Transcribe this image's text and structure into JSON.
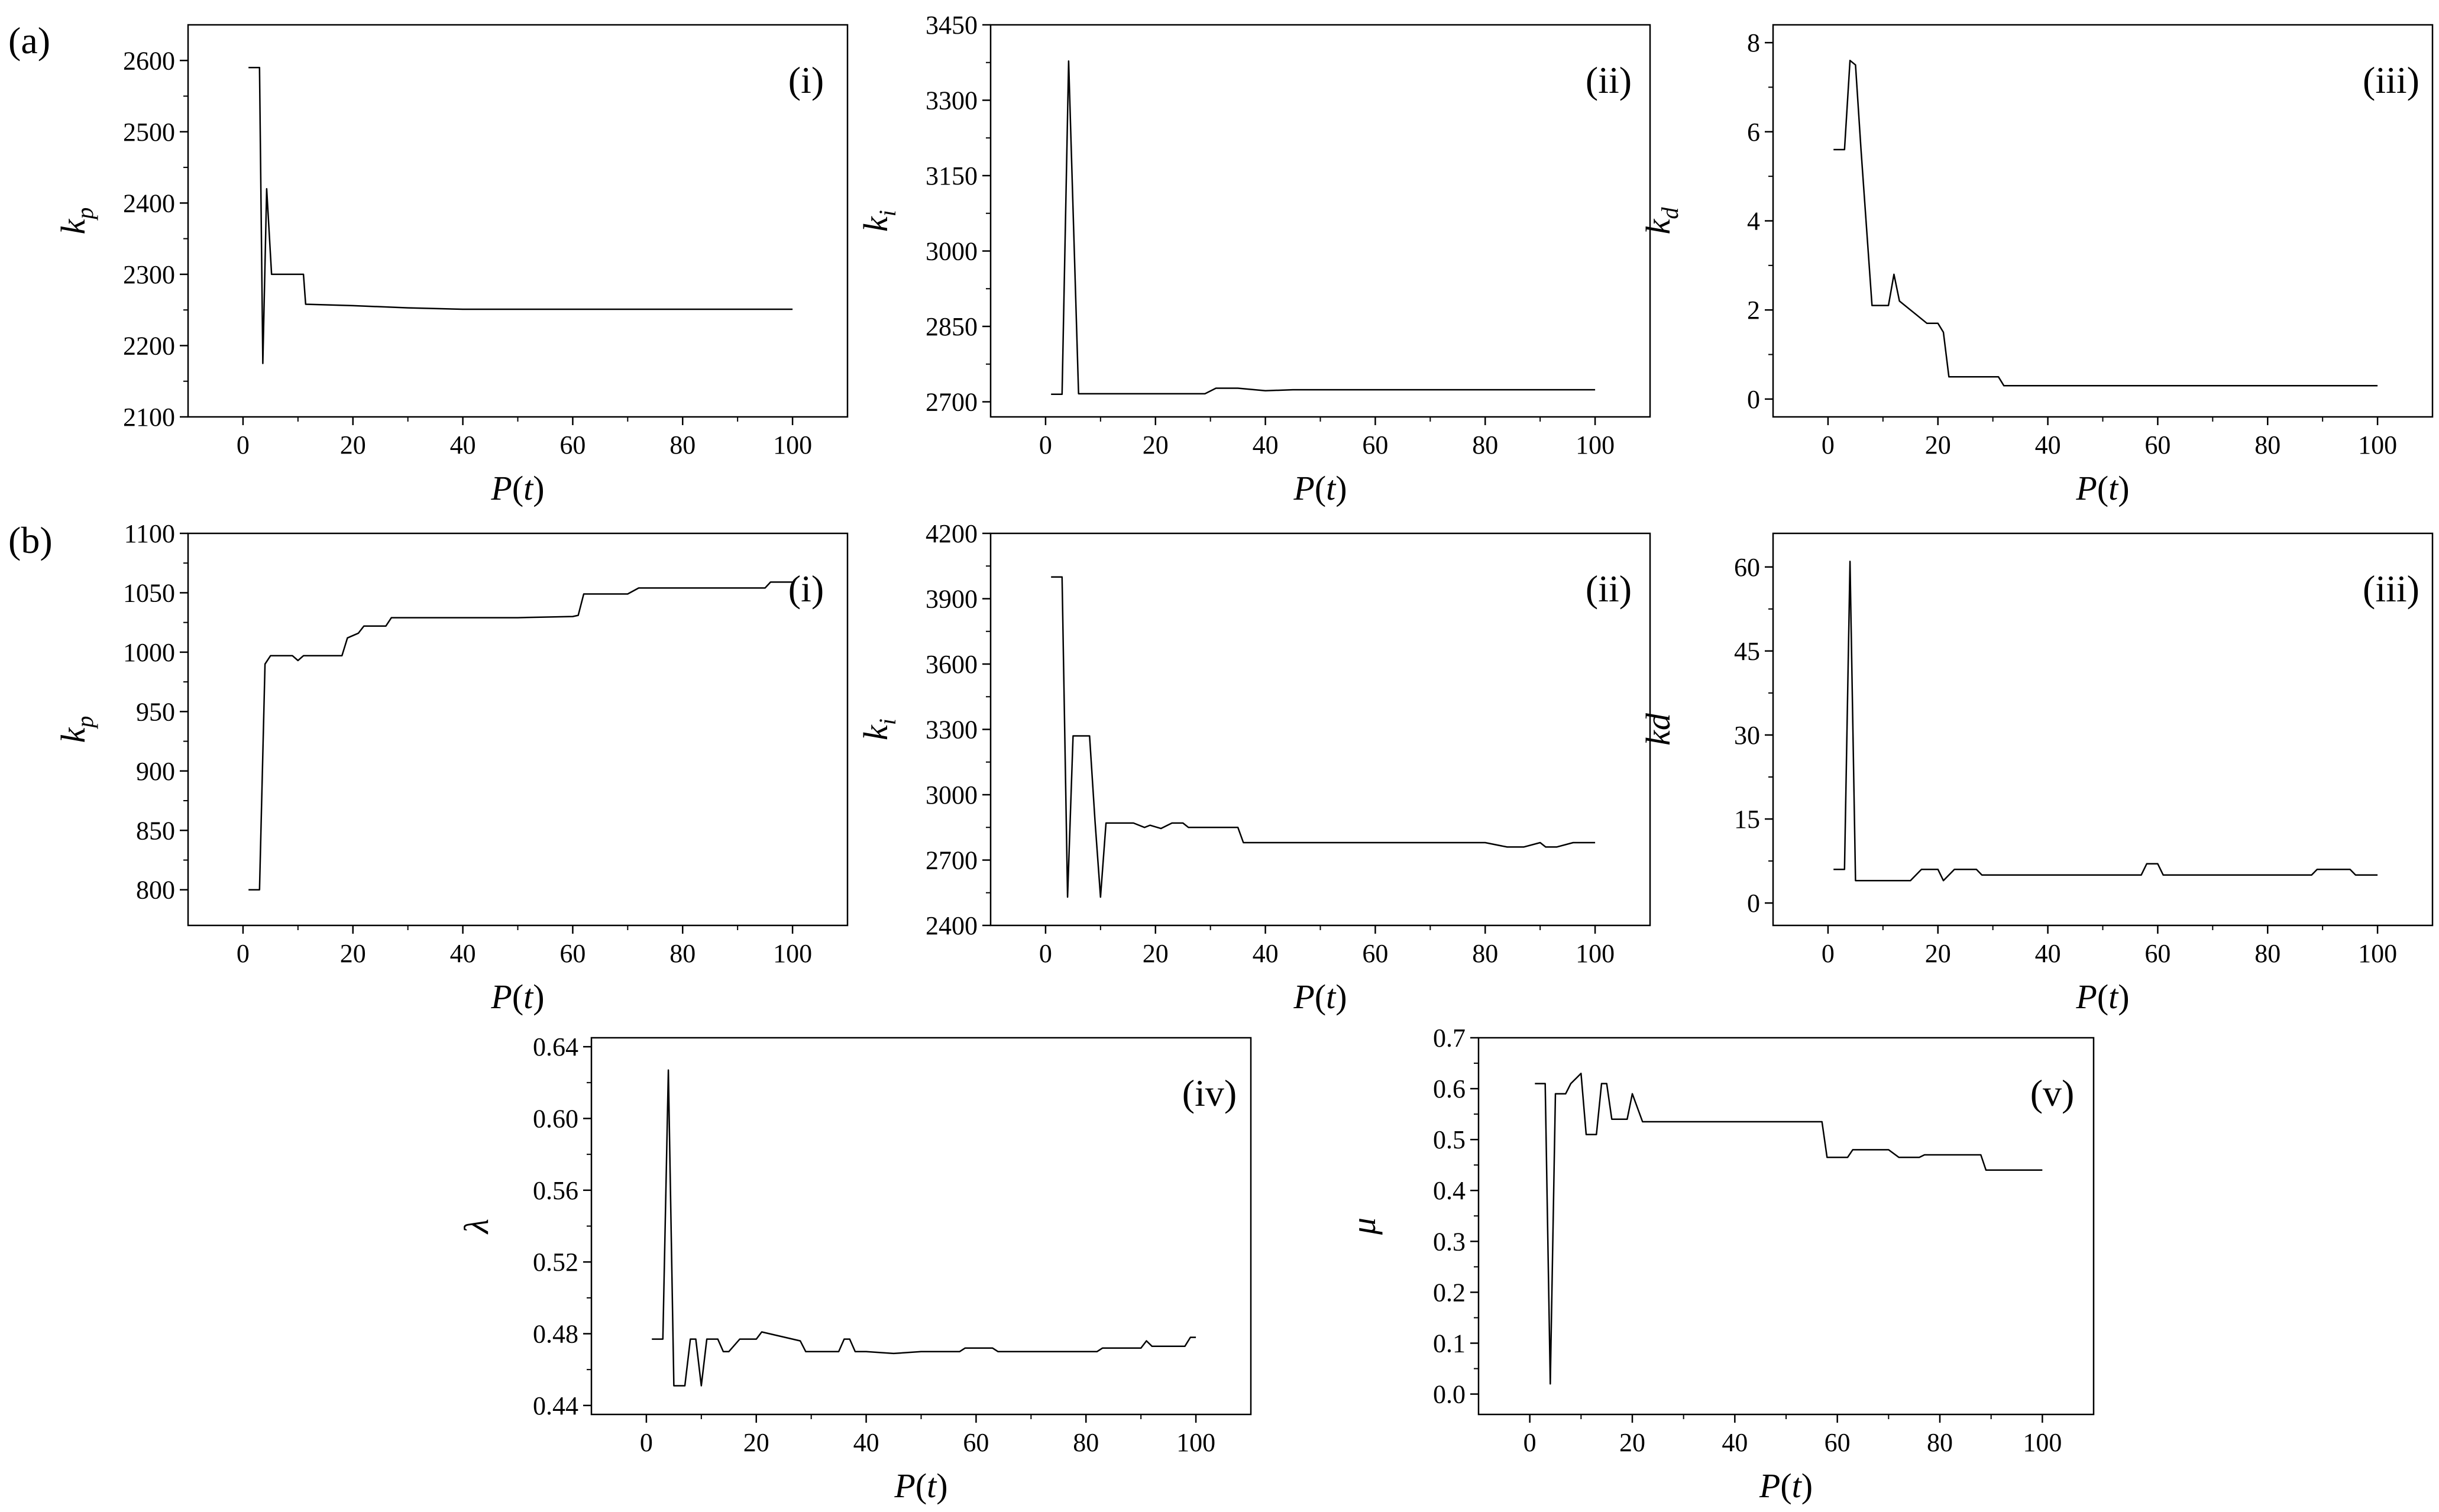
{
  "figure": {
    "row_labels": [
      "(a)",
      "(b)"
    ]
  },
  "chart_data": [
    {
      "id": "a-i",
      "type": "line",
      "panel_label": "(i)",
      "xlabel_main": "P",
      "xlabel_arg": "t",
      "ylabel_main": "k",
      "ylabel_sub": "p",
      "xlim": [
        -10,
        110
      ],
      "ylim": [
        2100,
        2650
      ],
      "xticks": [
        0,
        20,
        40,
        60,
        80,
        100
      ],
      "yticks": [
        2100,
        2200,
        2300,
        2400,
        2500,
        2600
      ],
      "series": [
        {
          "x": [
            1,
            3,
            3.6,
            4.3,
            5.2,
            5.6,
            6,
            11,
            11.4,
            20,
            30,
            40,
            50,
            60,
            70,
            80,
            90,
            100
          ],
          "y": [
            2590,
            2590,
            2175,
            2420,
            2300,
            2300,
            2300,
            2300,
            2258,
            2256,
            2253,
            2251,
            2251,
            2251,
            2251,
            2251,
            2251,
            2251
          ]
        }
      ]
    },
    {
      "id": "a-ii",
      "type": "line",
      "panel_label": "(ii)",
      "xlabel_main": "P",
      "xlabel_arg": "t",
      "ylabel_main": "k",
      "ylabel_sub": "i",
      "xlim": [
        -10,
        110
      ],
      "ylim": [
        2670,
        3450
      ],
      "xticks": [
        0,
        20,
        40,
        60,
        80,
        100
      ],
      "yticks": [
        2700,
        2850,
        3000,
        3150,
        3300,
        3450
      ],
      "series": [
        {
          "x": [
            1,
            3,
            4.2,
            6,
            10,
            20,
            29,
            31,
            35,
            40,
            45,
            50,
            60,
            70,
            80,
            90,
            100
          ],
          "y": [
            2715,
            2715,
            3378,
            2716,
            2716,
            2716,
            2716,
            2727,
            2727,
            2722,
            2724,
            2724,
            2724,
            2724,
            2724,
            2724,
            2724
          ]
        }
      ]
    },
    {
      "id": "a-iii",
      "type": "line",
      "panel_label": "(iii)",
      "xlabel_main": "P",
      "xlabel_arg": "t",
      "ylabel_main": "k",
      "ylabel_sub": "d",
      "xlim": [
        -10,
        110
      ],
      "ylim": [
        -0.4,
        8.4
      ],
      "xticks": [
        0,
        20,
        40,
        60,
        80,
        100
      ],
      "yticks": [
        0,
        2,
        4,
        6,
        8
      ],
      "series": [
        {
          "x": [
            1,
            3,
            4,
            5,
            6,
            8,
            11,
            12,
            13,
            15,
            16,
            18,
            20,
            21,
            22,
            30,
            31,
            32,
            40,
            60,
            80,
            100
          ],
          "y": [
            5.6,
            5.6,
            7.6,
            7.5,
            5.6,
            2.1,
            2.1,
            2.8,
            2.2,
            2.0,
            1.9,
            1.7,
            1.7,
            1.5,
            0.5,
            0.5,
            0.5,
            0.3,
            0.3,
            0.3,
            0.3,
            0.3
          ]
        }
      ]
    },
    {
      "id": "b-i",
      "type": "line",
      "panel_label": "(i)",
      "xlabel_main": "P",
      "xlabel_arg": "t",
      "ylabel_main": "k",
      "ylabel_sub": "p",
      "xlim": [
        -10,
        110
      ],
      "ylim": [
        770,
        1100
      ],
      "xticks": [
        0,
        20,
        40,
        60,
        80,
        100
      ],
      "yticks": [
        800,
        850,
        900,
        950,
        1000,
        1050,
        1100
      ],
      "series": [
        {
          "x": [
            1,
            3,
            4,
            5,
            9,
            10,
            11,
            18,
            19,
            21,
            22,
            26,
            27,
            30,
            40,
            50,
            60,
            61,
            62,
            70,
            72,
            80,
            90,
            95,
            96,
            100
          ],
          "y": [
            800,
            800,
            990,
            997,
            997,
            993,
            997,
            997,
            1012,
            1016,
            1022,
            1022,
            1029,
            1029,
            1029,
            1029,
            1030,
            1031,
            1049,
            1049,
            1054,
            1054,
            1054,
            1054,
            1059,
            1059
          ]
        }
      ]
    },
    {
      "id": "b-ii",
      "type": "line",
      "panel_label": "(ii)",
      "xlabel_main": "P",
      "xlabel_arg": "t",
      "ylabel_main": "k",
      "ylabel_sub": "i",
      "xlim": [
        -10,
        110
      ],
      "ylim": [
        2400,
        4200
      ],
      "xticks": [
        0,
        20,
        40,
        60,
        80,
        100
      ],
      "yticks": [
        2400,
        2700,
        3000,
        3300,
        3600,
        3900,
        4200
      ],
      "series": [
        {
          "x": [
            1,
            3,
            4,
            5,
            8,
            9,
            10,
            11,
            15,
            16,
            18,
            19,
            21,
            23,
            25,
            26,
            30,
            35,
            36,
            40,
            45,
            50,
            60,
            70,
            80,
            84,
            87,
            90,
            91,
            93,
            96,
            100
          ],
          "y": [
            4000,
            4000,
            2530,
            3270,
            3270,
            2880,
            2530,
            2870,
            2870,
            2870,
            2850,
            2860,
            2845,
            2870,
            2870,
            2850,
            2850,
            2850,
            2780,
            2780,
            2780,
            2780,
            2780,
            2780,
            2780,
            2760,
            2760,
            2780,
            2760,
            2760,
            2780,
            2780
          ]
        }
      ]
    },
    {
      "id": "b-iii",
      "type": "line",
      "panel_label": "(iii)",
      "xlabel_main": "P",
      "xlabel_arg": "t",
      "ylabel_main": "kd",
      "ylabel_sub": "",
      "xlim": [
        -10,
        110
      ],
      "ylim": [
        -4,
        66
      ],
      "xticks": [
        0,
        20,
        40,
        60,
        80,
        100
      ],
      "yticks": [
        0,
        15,
        30,
        45,
        60
      ],
      "series": [
        {
          "x": [
            1,
            3,
            4,
            5,
            10,
            15,
            17,
            18,
            20,
            21,
            23,
            27,
            28,
            40,
            57,
            58,
            60,
            61,
            80,
            88,
            89,
            95,
            96,
            100
          ],
          "y": [
            6,
            6,
            61,
            4,
            4,
            4,
            6,
            6,
            6,
            4,
            6,
            6,
            5,
            5,
            5,
            7,
            7,
            5,
            5,
            5,
            6,
            6,
            5,
            5
          ]
        }
      ]
    },
    {
      "id": "b-iv",
      "type": "line",
      "panel_label": "(iv)",
      "xlabel_main": "P",
      "xlabel_arg": "t",
      "ylabel_main": "λ",
      "ylabel_sub": "",
      "xlim": [
        -10,
        110
      ],
      "ylim": [
        0.435,
        0.645
      ],
      "xticks": [
        0,
        20,
        40,
        60,
        80,
        100
      ],
      "yticks": [
        0.44,
        0.48,
        0.52,
        0.56,
        0.6,
        0.64
      ],
      "series": [
        {
          "x": [
            1,
            3,
            4,
            5,
            7,
            8,
            9,
            10,
            11,
            13,
            14,
            15,
            17,
            20,
            21,
            28,
            29,
            35,
            36,
            37,
            38,
            40,
            45,
            50,
            57,
            58,
            63,
            64,
            70,
            82,
            83,
            90,
            91,
            92,
            98,
            99,
            100
          ],
          "y": [
            0.477,
            0.477,
            0.627,
            0.451,
            0.451,
            0.477,
            0.477,
            0.451,
            0.477,
            0.477,
            0.47,
            0.47,
            0.477,
            0.477,
            0.481,
            0.476,
            0.47,
            0.47,
            0.477,
            0.477,
            0.47,
            0.47,
            0.469,
            0.47,
            0.47,
            0.472,
            0.472,
            0.47,
            0.47,
            0.47,
            0.472,
            0.472,
            0.476,
            0.473,
            0.473,
            0.478,
            0.478
          ]
        }
      ]
    },
    {
      "id": "b-v",
      "type": "line",
      "panel_label": "(v)",
      "xlabel_main": "P",
      "xlabel_arg": "t",
      "ylabel_main": "μ",
      "ylabel_sub": "",
      "xlim": [
        -10,
        110
      ],
      "ylim": [
        -0.04,
        0.7
      ],
      "xticks": [
        0,
        20,
        40,
        60,
        80,
        100
      ],
      "yticks": [
        0.0,
        0.1,
        0.2,
        0.3,
        0.4,
        0.5,
        0.6,
        0.7
      ],
      "series": [
        {
          "x": [
            1,
            3,
            4,
            5,
            7,
            8,
            9,
            10,
            11,
            13,
            14,
            15,
            16,
            19,
            20,
            22,
            30,
            40,
            50,
            56,
            57,
            58,
            62,
            63,
            70,
            72,
            76,
            77,
            80,
            88,
            89,
            95,
            100
          ],
          "y": [
            0.61,
            0.61,
            0.02,
            0.59,
            0.59,
            0.61,
            0.62,
            0.63,
            0.51,
            0.51,
            0.61,
            0.61,
            0.54,
            0.54,
            0.59,
            0.535,
            0.535,
            0.535,
            0.535,
            0.535,
            0.535,
            0.465,
            0.465,
            0.48,
            0.48,
            0.465,
            0.465,
            0.47,
            0.47,
            0.47,
            0.44,
            0.44,
            0.44
          ]
        }
      ]
    }
  ]
}
